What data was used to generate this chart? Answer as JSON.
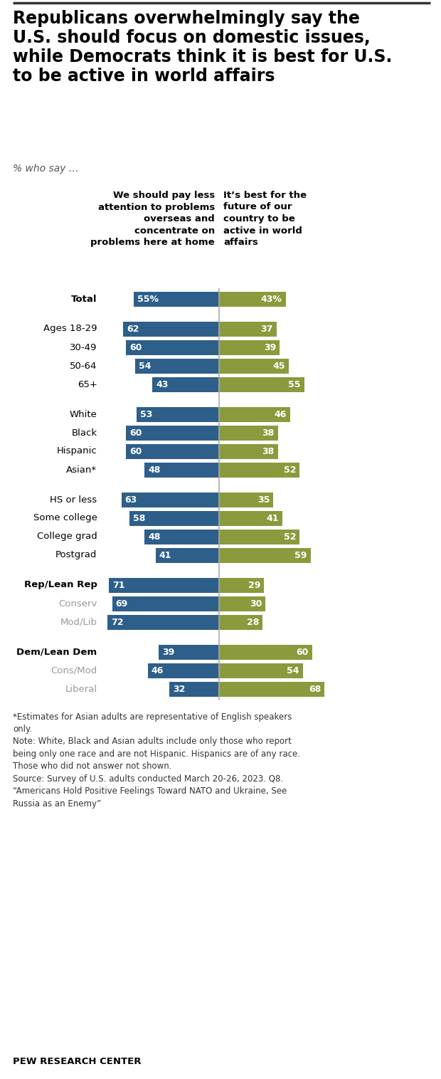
{
  "title": "Republicans overwhelmingly say the\nU.S. should focus on domestic issues,\nwhile Democrats think it is best for U.S.\nto be active in world affairs",
  "subtitle": "% who say …",
  "col1_header": "We should pay less\nattention to problems\noverseas and\nconcentrate on\nproblems here at home",
  "col2_header": "It’s best for the\nfuture of our\ncountry to be\nactive in world\naffairs",
  "categories": [
    "Total",
    "Ages 18-29",
    "30-49",
    "50-64",
    "65+",
    "White",
    "Black",
    "Hispanic",
    "Asian*",
    "HS or less",
    "Some college",
    "College grad",
    "Postgrad",
    "Rep/Lean Rep",
    "Conserv",
    "Mod/Lib",
    "Dem/Lean Dem",
    "Cons/Mod",
    "Liberal"
  ],
  "val1": [
    55,
    62,
    60,
    54,
    43,
    53,
    60,
    60,
    48,
    63,
    58,
    48,
    41,
    71,
    69,
    72,
    39,
    46,
    32
  ],
  "val2": [
    43,
    37,
    39,
    45,
    55,
    46,
    38,
    38,
    52,
    35,
    41,
    52,
    59,
    29,
    30,
    28,
    60,
    54,
    68
  ],
  "val1_label": [
    "55%",
    "62",
    "60",
    "54",
    "43",
    "53",
    "60",
    "60",
    "48",
    "63",
    "58",
    "48",
    "41",
    "71",
    "69",
    "72",
    "39",
    "46",
    "32"
  ],
  "val2_label": [
    "43%",
    "37",
    "39",
    "45",
    "55",
    "46",
    "38",
    "38",
    "52",
    "35",
    "41",
    "52",
    "59",
    "29",
    "30",
    "28",
    "60",
    "54",
    "68"
  ],
  "color1": "#2E5F8A",
  "color2": "#8A9A3C",
  "bold_rows": [
    0,
    13,
    16
  ],
  "gray_label_rows": [
    14,
    15,
    17,
    18
  ],
  "footnote": "*Estimates for Asian adults are representative of English speakers\nonly.\nNote: White, Black and Asian adults include only those who report\nbeing only one race and are not Hispanic. Hispanics are of any race.\nThose who did not answer not shown.\nSource: Survey of U.S. adults conducted March 20-26, 2023. Q8.\n“Americans Hold Positive Feelings Toward NATO and Ukraine, See\nRussia as an Enemy”",
  "source_label": "PEW RESEARCH CENTER",
  "background_color": "#ffffff",
  "group_gap_after": [
    0,
    4,
    8,
    12,
    15
  ]
}
